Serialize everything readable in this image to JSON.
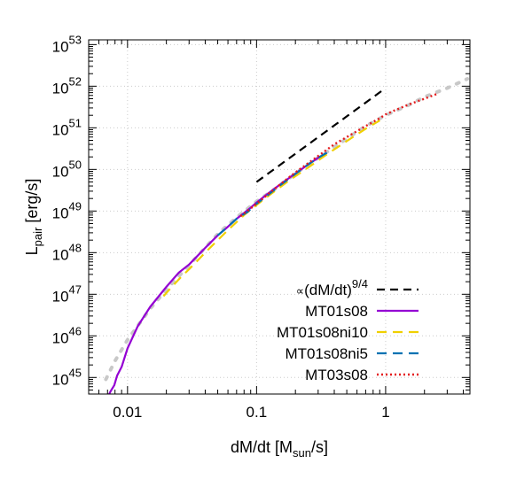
{
  "chart_data": {
    "type": "line",
    "xscale": "log",
    "yscale": "log",
    "xlim": [
      0.005,
      4.5
    ],
    "ylim": [
      4e+44,
      1.3e+53
    ],
    "grid": true,
    "legend_position": "bottom-right",
    "xlabel": {
      "main": "dM/dt [M",
      "sub": "sun",
      "tail": "/s]"
    },
    "ylabel": {
      "main": "L",
      "sub": "pair",
      "tail": " [erg/s]"
    },
    "x_ticks": [
      {
        "value": 0.01,
        "label": "0.01"
      },
      {
        "value": 0.1,
        "label": "0.1"
      },
      {
        "value": 1,
        "label": "1"
      }
    ],
    "y_ticks": [
      {
        "value": 1e+45,
        "base": "10",
        "exp": "45"
      },
      {
        "value": 1e+46,
        "base": "10",
        "exp": "46"
      },
      {
        "value": 1e+47,
        "base": "10",
        "exp": "47"
      },
      {
        "value": 1e+48,
        "base": "10",
        "exp": "48"
      },
      {
        "value": 1e+49,
        "base": "10",
        "exp": "49"
      },
      {
        "value": 1e+50,
        "base": "10",
        "exp": "50"
      },
      {
        "value": 1e+51,
        "base": "10",
        "exp": "51"
      },
      {
        "value": 1e+52,
        "base": "10",
        "exp": "52"
      },
      {
        "value": 1e+53,
        "base": "10",
        "exp": "53"
      }
    ],
    "fit_curve": {
      "name": "fit",
      "color": "#c8c8c8",
      "x": [
        0.0068,
        0.008,
        0.01,
        0.015,
        0.02,
        0.03,
        0.05,
        0.07,
        0.1,
        0.15,
        0.2,
        0.3,
        0.5,
        0.7,
        1.0,
        1.5,
        2.0,
        3.0,
        4.3
      ],
      "y": [
        9e+44,
        2.5e+45,
        8e+45,
        4.5e+46,
        1.3e+47,
        5e+47,
        2.8e+48,
        7e+48,
        1.7e+49,
        4e+49,
        8e+49,
        1.9e+50,
        5.5e+50,
        1.1e+51,
        2e+51,
        3.5e+51,
        5.5e+51,
        9e+51,
        1.5e+52
      ]
    },
    "series": [
      {
        "name": "reference",
        "legend_text": "(dM/dt)",
        "legend_prefix": "∝",
        "legend_exp": "9/4",
        "color": "#000000",
        "dash": "9,6",
        "width": 2.2,
        "x": [
          0.1,
          1.0
        ],
        "y": [
          5e+49,
          9e+51
        ]
      },
      {
        "name": "MT01s08",
        "color": "#9400d3",
        "dash": "",
        "width": 2.2,
        "x": [
          0.0072,
          0.0075,
          0.0079,
          0.0083,
          0.009,
          0.01,
          0.012,
          0.015,
          0.02,
          0.025,
          0.03,
          0.04,
          0.05,
          0.06,
          0.07,
          0.08,
          0.09,
          0.1,
          0.12,
          0.15,
          0.2,
          0.25,
          0.3,
          0.35
        ],
        "y": [
          4e+44,
          5e+44,
          6.5e+44,
          1.1e+45,
          1.8e+45,
          5e+45,
          1.7e+46,
          5e+46,
          1.5e+47,
          3.3e+47,
          5.2e+47,
          1.3e+48,
          2.6e+48,
          4.2e+48,
          6.5e+48,
          9e+48,
          1.2e+49,
          1.6e+49,
          2.5e+49,
          4.2e+49,
          8e+49,
          1.3e+50,
          1.9e+50,
          2.5e+50
        ]
      },
      {
        "name": "MT01s08ni10",
        "color": "#f0d000",
        "dash": "11,7",
        "width": 2.2,
        "x": [
          0.019,
          0.022,
          0.026,
          0.03,
          0.035,
          0.04,
          0.05,
          0.06,
          0.08,
          0.1,
          0.13,
          0.18,
          0.25,
          0.35,
          0.5,
          0.7,
          0.9
        ],
        "y": [
          9e+46,
          1.5e+47,
          2.6e+47,
          4e+47,
          6.5e+47,
          1e+48,
          2e+48,
          3.5e+48,
          8e+48,
          1.4e+49,
          2.6e+49,
          5.5e+49,
          1.1e+50,
          2.3e+50,
          4.8e+50,
          9.5e+50,
          1.5e+51
        ]
      },
      {
        "name": "MT01s08ni5",
        "color": "#0072b2",
        "dash": "11,7",
        "width": 2.2,
        "x": [
          0.05,
          0.06,
          0.07,
          0.085,
          0.1,
          0.12,
          0.15,
          0.2,
          0.25,
          0.3,
          0.35
        ],
        "y": [
          2.6e+48,
          4.2e+48,
          6.5e+48,
          9.5e+48,
          1.5e+49,
          2.3e+49,
          4e+49,
          7.8e+49,
          1.3e+50,
          1.9e+50,
          2.5e+50
        ]
      },
      {
        "name": "MT03s08",
        "color": "#e41a1c",
        "dash": "2,3",
        "width": 2.4,
        "x": [
          0.075,
          0.085,
          0.1,
          0.12,
          0.15,
          0.2,
          0.3,
          0.4,
          0.5,
          0.7,
          0.9,
          1.0,
          1.2,
          1.5,
          2.0,
          2.5
        ],
        "y": [
          7.5e+48,
          1e+49,
          1.5e+49,
          2.4e+49,
          4.2e+49,
          8.5e+49,
          2.1e+50,
          4e+50,
          6e+50,
          1.1e+51,
          1.7e+51,
          2.1e+51,
          2.7e+51,
          3.6e+51,
          5e+51,
          6.5e+51
        ]
      }
    ]
  }
}
